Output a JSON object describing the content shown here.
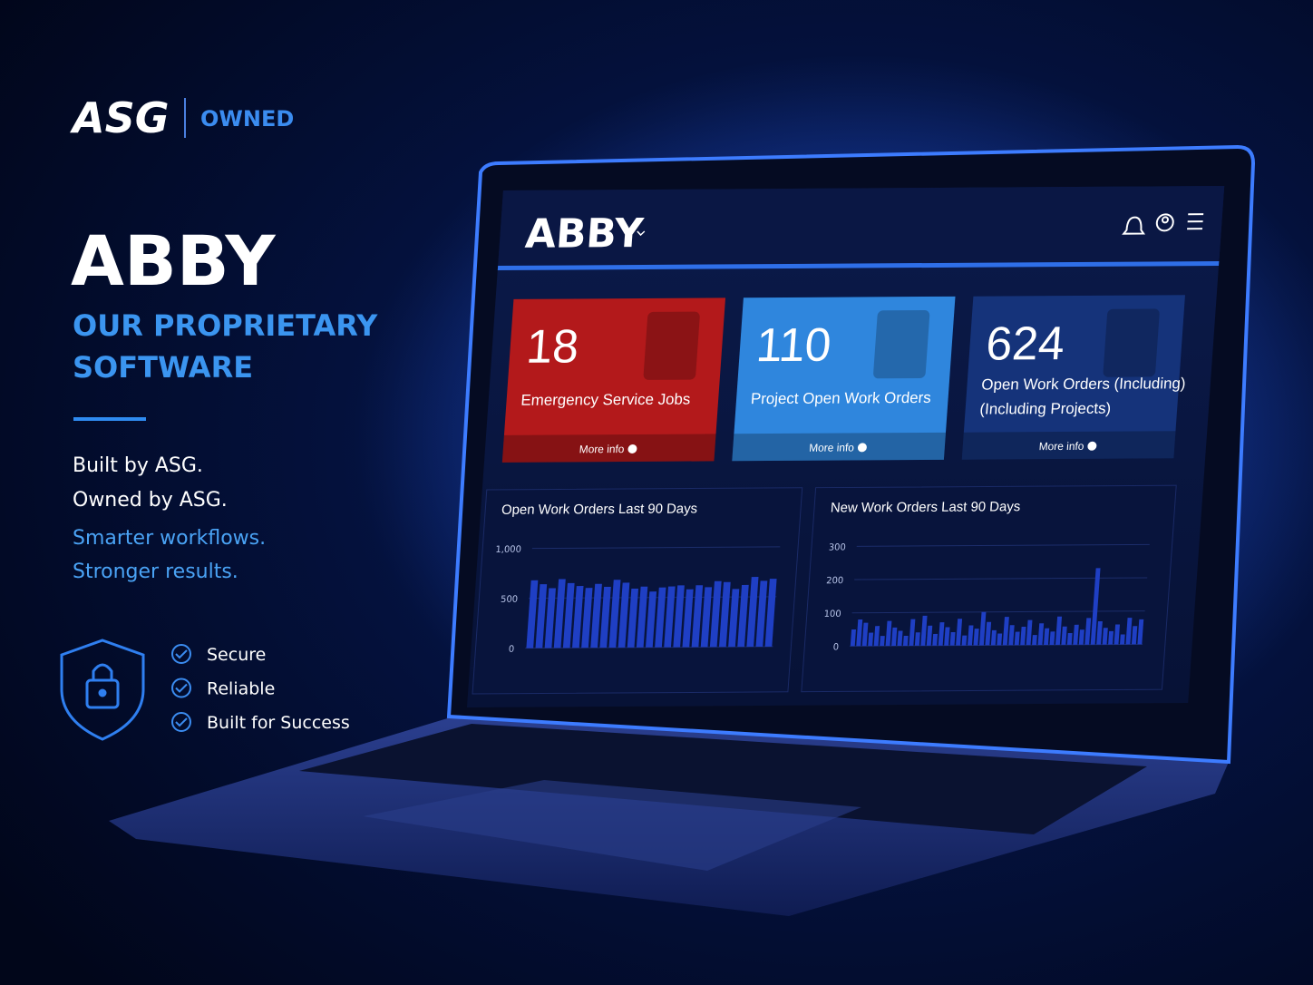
{
  "brand": {
    "logo": "ASG",
    "tag": "OWNED"
  },
  "hero": {
    "title": "ABBY",
    "subtitle_lines": [
      "OUR PROPRIETARY",
      "SOFTWARE"
    ],
    "lines": [
      "Built by ASG.",
      "Owned by ASG."
    ],
    "accent_lines": [
      "Smarter workflows.",
      "Stronger results."
    ]
  },
  "features": [
    "Secure",
    "Reliable",
    "Built for Success"
  ],
  "dashboard": {
    "logo": "ABBY",
    "cards": [
      {
        "value": 18,
        "label_lines": [
          "Emergency Service Jobs"
        ],
        "link": "More info",
        "color": "#b3191b"
      },
      {
        "value": 110,
        "label_lines": [
          "Project Open Work Orders"
        ],
        "link": "More info",
        "color": "#2f86dd"
      },
      {
        "value": 624,
        "label_lines": [
          "Open Work Orders (Including)",
          "(Including Projects)"
        ],
        "link": "More info",
        "color": "#15337a"
      }
    ]
  },
  "chart_data": [
    {
      "type": "bar",
      "title": "Open Work Orders Last 90 Days",
      "color": "#1f3fc4",
      "values": [
        680,
        640,
        600,
        690,
        650,
        620,
        600,
        640,
        610,
        680,
        650,
        590,
        610,
        560,
        600,
        610,
        620,
        580,
        620,
        600,
        660,
        650,
        580,
        620,
        700,
        660,
        680
      ],
      "ylim": [
        0,
        1000
      ],
      "yticks": [
        0,
        500,
        {
          "value": 1000,
          "label": "1,000"
        }
      ],
      "grid": true
    },
    {
      "type": "bar",
      "title": "New Work Orders Last 90 Days",
      "color": "#1f3fc4",
      "values": [
        50,
        80,
        70,
        40,
        60,
        30,
        75,
        55,
        45,
        30,
        80,
        40,
        90,
        60,
        35,
        70,
        55,
        40,
        80,
        30,
        60,
        50,
        100,
        70,
        45,
        35,
        85,
        60,
        40,
        55,
        75,
        30,
        65,
        50,
        40,
        85,
        55,
        35,
        60,
        45,
        80,
        230,
        70,
        50,
        40,
        60,
        30,
        80,
        55,
        75
      ],
      "ylim": [
        0,
        300
      ],
      "yticks": [
        0,
        100,
        200,
        300
      ],
      "grid": true
    }
  ]
}
